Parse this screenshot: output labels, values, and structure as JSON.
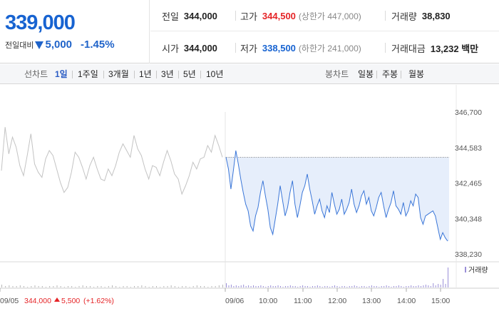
{
  "header": {
    "price": "339,000",
    "change_label": "전일대비",
    "change_amount": "5,000",
    "change_percent": "-1.45%",
    "stats_row1": {
      "prev_close_label": "전일",
      "prev_close": "344,000",
      "high_label": "고가",
      "high": "344,500",
      "upper_limit": "(상한가 447,000)",
      "volume_label": "거래량",
      "volume": "38,830"
    },
    "stats_row2": {
      "open_label": "시가",
      "open": "344,000",
      "low_label": "저가",
      "low": "338,500",
      "lower_limit": "(하한가 241,000)",
      "value_label": "거래대금",
      "value": "13,232 백만"
    }
  },
  "toolbar": {
    "line_label": "선차트",
    "periods": [
      "1일",
      "1주일",
      "3개월",
      "1년",
      "3년",
      "5년",
      "10년"
    ],
    "active_period": "1일",
    "candle_label": "봉차트",
    "candles": [
      "일봉",
      "주봉",
      "월봉"
    ]
  },
  "colors": {
    "price_up": "#e52427",
    "price_down": "#1763d1",
    "prev_day_line": "#c3c3c3",
    "today_line": "#3a76d8",
    "today_fill": "#e6eefb",
    "volume_bar": "#9a8fd8"
  },
  "chart_data": {
    "type": "line",
    "y_ticks": [
      "346,700",
      "344,583",
      "342,465",
      "340,348",
      "338,230"
    ],
    "ylim": [
      338230,
      346700
    ],
    "reference_line": 344000,
    "x_ticks": [
      "09/05",
      "09/06",
      "10:00",
      "11:00",
      "12:00",
      "13:00",
      "14:00",
      "15:00"
    ],
    "prev_day_label": "09/05",
    "prev_day_close": "344,000",
    "prev_day_change": "5,500",
    "prev_day_change_pct": "(+1.62%)",
    "volume_legend": "거래량",
    "series": [
      {
        "name": "09/05",
        "values": [
          343200,
          345800,
          344200,
          345200,
          344600,
          343500,
          342900,
          344100,
          345400,
          343600,
          343100,
          342800,
          343900,
          344400,
          344100,
          343300,
          342500,
          341900,
          342200,
          343100,
          344300,
          344000,
          343400,
          342700,
          343500,
          344000,
          343300,
          342700,
          342600,
          343300,
          342900,
          343500,
          344300,
          344800,
          344400,
          344000,
          345300,
          344500,
          344100,
          343300,
          342700,
          343500,
          343400,
          342900,
          343700,
          344400,
          343800,
          343000,
          342700,
          341800,
          342300,
          342900,
          343700,
          343300,
          343900,
          344000,
          344700,
          344300,
          345300,
          344700,
          344000
        ]
      },
      {
        "name": "09/06",
        "values": [
          344000,
          343300,
          342100,
          343200,
          344400,
          343600,
          342700,
          341900,
          341200,
          340800,
          339900,
          339600,
          340500,
          341000,
          341900,
          342600,
          341700,
          340900,
          339800,
          339400,
          340300,
          341200,
          342300,
          341400,
          340500,
          341000,
          341900,
          342600,
          341200,
          340400,
          341100,
          341900,
          342300,
          343000,
          342100,
          341400,
          340600,
          341100,
          341500,
          340800,
          340400,
          341100,
          340700,
          341900,
          341200,
          340600,
          340900,
          341500,
          340600,
          340900,
          341300,
          342100,
          341200,
          340700,
          341100,
          341700,
          342000,
          341200,
          341600,
          340800,
          340500,
          341000,
          341600,
          341900,
          341100,
          340400,
          340900,
          341300,
          342000,
          341100,
          340900,
          340600,
          341300,
          340500,
          340800,
          341400,
          341100,
          341800,
          341600,
          340400,
          340000,
          340500,
          340600,
          340700,
          340800,
          340500,
          339800,
          339100,
          339500,
          339200,
          339000
        ]
      }
    ],
    "volume": {
      "prev_day": [
        4,
        2,
        3,
        2,
        2,
        3,
        2,
        1,
        2,
        3,
        2,
        2,
        1,
        2,
        2,
        3,
        2,
        1,
        2,
        2,
        1,
        2,
        3,
        2,
        2,
        1,
        2,
        2,
        1,
        2,
        3,
        2,
        1,
        2,
        2,
        1,
        2,
        2,
        3,
        2,
        1,
        2,
        2,
        1,
        2,
        2,
        3,
        2,
        1,
        2,
        2,
        1,
        2,
        3,
        2,
        2,
        1,
        2,
        2,
        3,
        4
      ],
      "today": [
        6,
        3,
        4,
        2,
        3,
        2,
        3,
        4,
        2,
        3,
        2,
        3,
        2,
        2,
        3,
        2,
        1,
        2,
        3,
        2,
        2,
        3,
        2,
        1,
        2,
        2,
        3,
        2,
        2,
        1,
        2,
        3,
        2,
        2,
        1,
        2,
        2,
        3,
        2,
        1,
        2,
        2,
        1,
        2,
        3,
        2,
        1,
        2,
        2,
        1,
        2,
        2,
        3,
        2,
        1,
        2,
        2,
        1,
        2,
        3,
        2,
        2,
        1,
        2,
        2,
        3,
        2,
        1,
        2,
        2,
        3,
        2,
        1,
        2,
        2,
        3,
        2,
        2,
        3,
        2,
        3,
        4,
        3,
        2,
        6,
        3,
        5,
        4,
        12,
        5,
        28
      ]
    }
  }
}
